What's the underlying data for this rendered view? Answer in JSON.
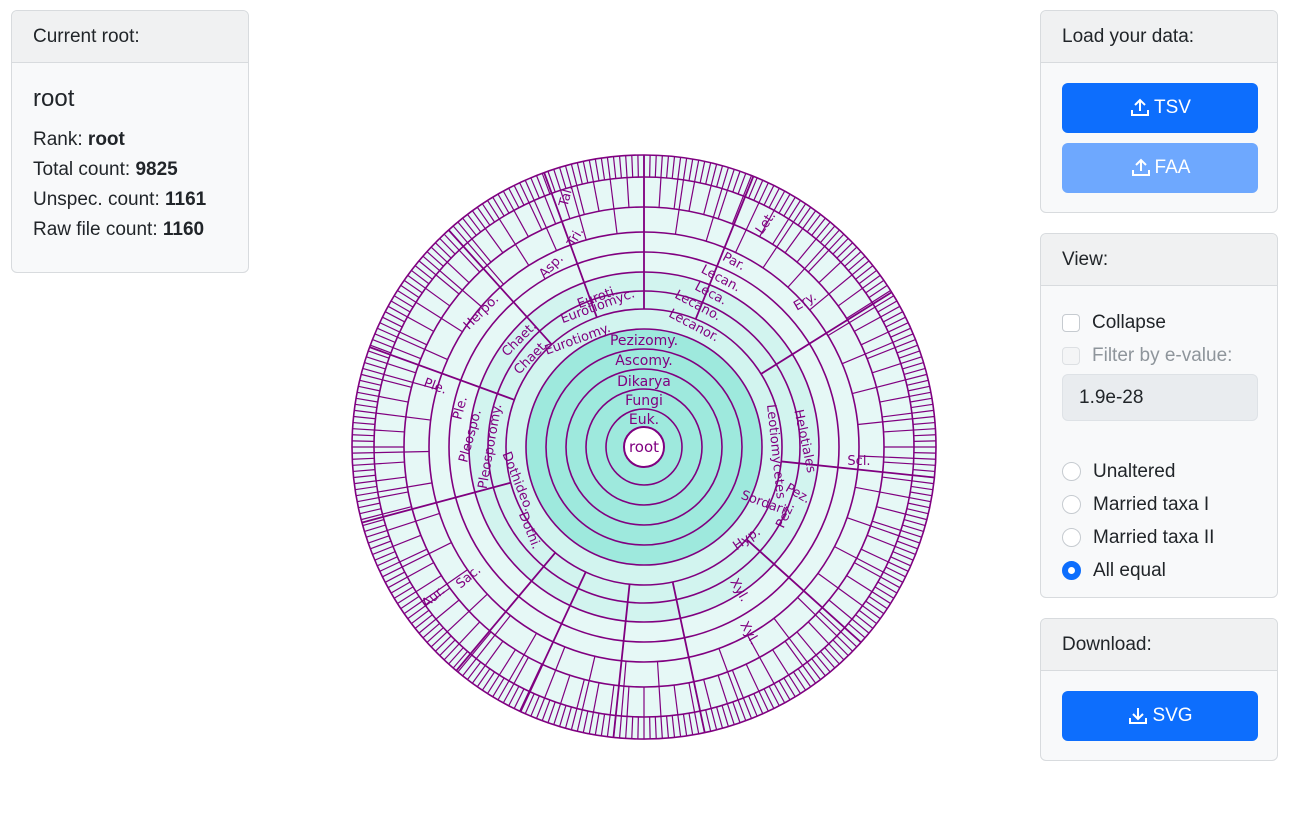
{
  "current_root": {
    "header": "Current root:",
    "name": "root",
    "rank_label": "Rank:",
    "rank_value": "root",
    "total_label": "Total count:",
    "total_value": "9825",
    "unspec_label": "Unspec. count:",
    "unspec_value": "1161",
    "raw_label": "Raw file count:",
    "raw_value": "1160"
  },
  "load": {
    "header": "Load your data:",
    "tsv_label": "TSV",
    "faa_label": "FAA"
  },
  "view": {
    "header": "View:",
    "collapse_label": "Collapse",
    "filter_label": "Filter by e-value:",
    "evalue": "1.9e-28",
    "radios": [
      {
        "label": "Unaltered",
        "checked": false
      },
      {
        "label": "Married taxa I",
        "checked": false
      },
      {
        "label": "Married taxa II",
        "checked": false
      },
      {
        "label": "All equal",
        "checked": true
      }
    ]
  },
  "download": {
    "header": "Download:",
    "svg_label": "SVG"
  },
  "colors": {
    "primary": "#0d6efd",
    "primary_disabled": "#6ea8fe",
    "ring_stroke": "#800080",
    "ring_fill_inner": "#9ee9dd",
    "ring_fill_outer": "#e6f8f6",
    "wedge_fill": "#c8f5c0"
  },
  "sunburst": {
    "center_label": "root",
    "rings": [
      "Euk.",
      "Fungi",
      "Dikarya",
      "Ascomy.",
      "Pezizomy."
    ],
    "labels": [
      "Leotiomycetes",
      "Helotiales",
      "Scl.",
      "Ery.",
      "Let.",
      "Par.",
      "Lecan.",
      "Leca.",
      "Lecano.",
      "Lecanor.",
      "Eurotiomy.",
      "Eurotiomyc.",
      "Euroti.",
      "Asp.",
      "Tri.",
      "Tal.",
      "Chaet.",
      "Chaet.",
      "Herpo.",
      "Dothideo.",
      "Dothi.",
      "Pleosporomy.",
      "Pleospo.",
      "Ple.",
      "Ple.",
      "Sac.",
      "Aur.",
      "Sordari.",
      "Hyp.",
      "Pez.",
      "Pez.",
      "Xyl.",
      "Xyl."
    ]
  }
}
